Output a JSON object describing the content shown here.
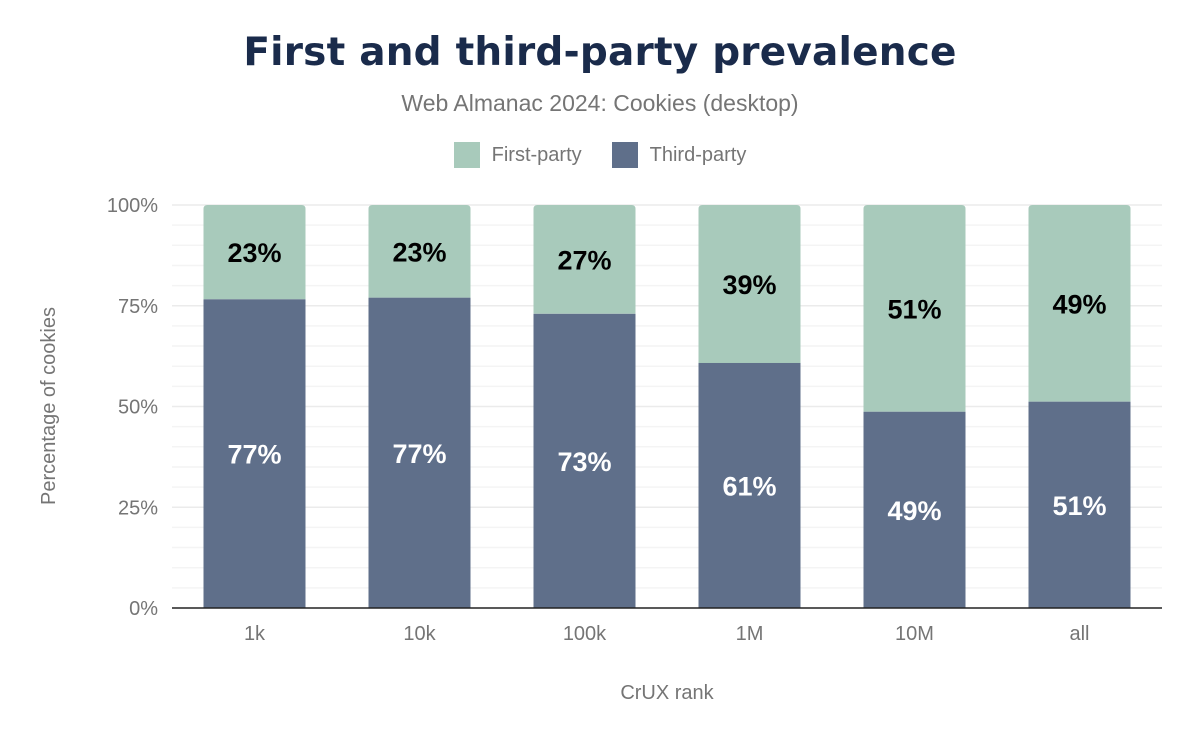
{
  "chart_data": {
    "type": "bar",
    "stacked": true,
    "title": "First and third-party prevalence",
    "subtitle": "Web Almanac 2024: Cookies (desktop)",
    "xlabel": "CrUX rank",
    "ylabel": "Percentage of cookies",
    "categories": [
      "1k",
      "10k",
      "100k",
      "1M",
      "10M",
      "all"
    ],
    "ylim": [
      0,
      100
    ],
    "yticks": [
      "0%",
      "25%",
      "50%",
      "75%",
      "100%"
    ],
    "grid": true,
    "legend_position": "top",
    "series": [
      {
        "name": "First-party",
        "color": "#a8cabb",
        "values": [
          23.4,
          23.0,
          27.0,
          39.2,
          51.3,
          48.8
        ],
        "labels": [
          "23%",
          "23%",
          "27%",
          "39%",
          "51%",
          "49%"
        ]
      },
      {
        "name": "Third-party",
        "color": "#5f6f8a",
        "values": [
          76.6,
          77.0,
          73.0,
          60.8,
          48.7,
          51.2
        ],
        "labels": [
          "77%",
          "77%",
          "73%",
          "61%",
          "49%",
          "51%"
        ]
      }
    ]
  }
}
